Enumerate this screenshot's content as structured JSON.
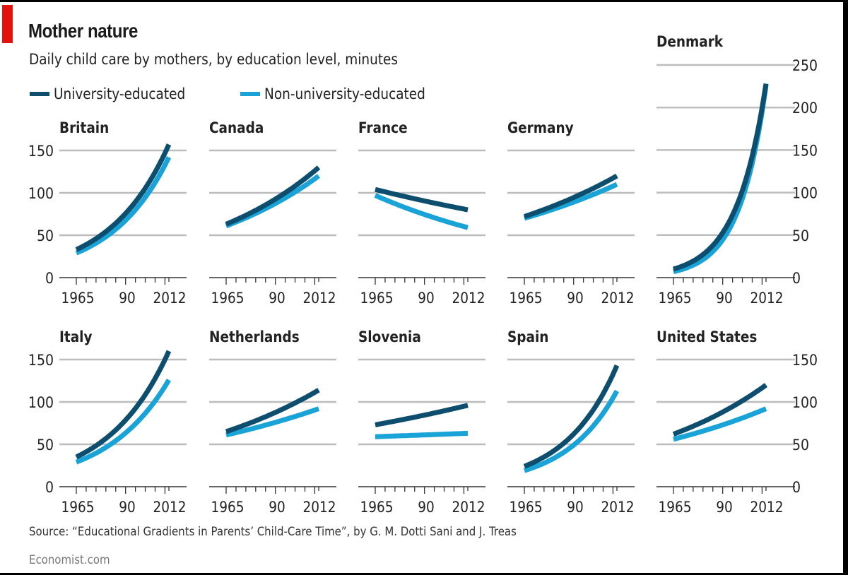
{
  "header": {
    "title": "Mother nature",
    "subtitle": "Daily child care by mothers, by education level, minutes"
  },
  "legend": [
    {
      "label": "University-educated",
      "color": "#0d4e6e"
    },
    {
      "label": "Non-university-educated",
      "color": "#1aa3d6"
    }
  ],
  "footer": {
    "source": "Source: “Educational Gradients in Parents’ Child-Care Time”, by G. M. Dotti Sani and J. Treas",
    "credit": "Economist.com"
  },
  "colors": {
    "accent_red": "#e3120b",
    "grid": "#bdbdbd",
    "axis": "#333333"
  },
  "chart_data": {
    "type": "line",
    "title": "Mother nature",
    "subtitle": "Daily child care by mothers, by education level, minutes",
    "xlabel": "",
    "ylabel": "minutes",
    "x_ticks": [
      "1965",
      "90",
      "2012"
    ],
    "x_range": [
      1965,
      2012
    ],
    "grid": true,
    "legend_position": "top-left",
    "series_names": [
      "University-educated",
      "Non-university-educated"
    ],
    "panels": [
      {
        "country": "Britain",
        "row": 0,
        "ylim": [
          0,
          150
        ],
        "y_ticks": [
          "0",
          "50",
          "100",
          "150"
        ],
        "y_axis_side": "left",
        "series": [
          {
            "name": "University-educated",
            "x": [
              1965,
              2012
            ],
            "values": [
              33,
              157
            ]
          },
          {
            "name": "Non-university-educated",
            "x": [
              1965,
              2012
            ],
            "values": [
              29,
              142
            ]
          }
        ]
      },
      {
        "country": "Canada",
        "row": 0,
        "ylim": [
          0,
          150
        ],
        "y_ticks": [],
        "y_axis_side": "none",
        "series": [
          {
            "name": "University-educated",
            "x": [
              1965,
              2012
            ],
            "values": [
              63,
              130
            ]
          },
          {
            "name": "Non-university-educated",
            "x": [
              1965,
              2012
            ],
            "values": [
              61,
              120
            ]
          }
        ]
      },
      {
        "country": "France",
        "row": 0,
        "ylim": [
          0,
          150
        ],
        "y_ticks": [],
        "y_axis_side": "none",
        "series": [
          {
            "name": "University-educated",
            "x": [
              1965,
              2012
            ],
            "values": [
              104,
              80
            ]
          },
          {
            "name": "Non-university-educated",
            "x": [
              1965,
              2012
            ],
            "values": [
              97,
              59
            ]
          }
        ]
      },
      {
        "country": "Germany",
        "row": 0,
        "ylim": [
          0,
          150
        ],
        "y_ticks": [],
        "y_axis_side": "none",
        "series": [
          {
            "name": "University-educated",
            "x": [
              1965,
              2012
            ],
            "values": [
              72,
              120
            ]
          },
          {
            "name": "Non-university-educated",
            "x": [
              1965,
              2012
            ],
            "values": [
              70,
              110
            ]
          }
        ]
      },
      {
        "country": "Denmark",
        "row": 0,
        "ylim": [
          0,
          250
        ],
        "y_ticks": [
          "0",
          "50",
          "100",
          "150",
          "200",
          "250"
        ],
        "y_axis_side": "right",
        "series": [
          {
            "name": "University-educated",
            "x": [
              1965,
              2012
            ],
            "values": [
              10,
              228
            ]
          },
          {
            "name": "Non-university-educated",
            "x": [
              1965,
              2012
            ],
            "values": [
              7,
              226
            ]
          }
        ]
      },
      {
        "country": "Italy",
        "row": 1,
        "ylim": [
          0,
          150
        ],
        "y_ticks": [
          "0",
          "50",
          "100",
          "150"
        ],
        "y_axis_side": "left",
        "series": [
          {
            "name": "University-educated",
            "x": [
              1965,
              2012
            ],
            "values": [
              35,
              160
            ]
          },
          {
            "name": "Non-university-educated",
            "x": [
              1965,
              2012
            ],
            "values": [
              29,
              126
            ]
          }
        ]
      },
      {
        "country": "Netherlands",
        "row": 1,
        "ylim": [
          0,
          150
        ],
        "y_ticks": [],
        "y_axis_side": "none",
        "series": [
          {
            "name": "University-educated",
            "x": [
              1965,
              2012
            ],
            "values": [
              65,
              114
            ]
          },
          {
            "name": "Non-university-educated",
            "x": [
              1965,
              2012
            ],
            "values": [
              61,
              92
            ]
          }
        ]
      },
      {
        "country": "Slovenia",
        "row": 1,
        "ylim": [
          0,
          150
        ],
        "y_ticks": [],
        "y_axis_side": "none",
        "series": [
          {
            "name": "University-educated",
            "x": [
              1965,
              2012
            ],
            "values": [
              73,
              96
            ]
          },
          {
            "name": "Non-university-educated",
            "x": [
              1965,
              2012
            ],
            "values": [
              59,
              63
            ]
          }
        ]
      },
      {
        "country": "Spain",
        "row": 1,
        "ylim": [
          0,
          150
        ],
        "y_ticks": [],
        "y_axis_side": "none",
        "series": [
          {
            "name": "University-educated",
            "x": [
              1965,
              2012
            ],
            "values": [
              24,
              143
            ]
          },
          {
            "name": "Non-university-educated",
            "x": [
              1965,
              2012
            ],
            "values": [
              19,
              113
            ]
          }
        ]
      },
      {
        "country": "United States",
        "row": 1,
        "ylim": [
          0,
          150
        ],
        "y_ticks": [
          "0",
          "50",
          "100",
          "150"
        ],
        "y_axis_side": "right",
        "series": [
          {
            "name": "University-educated",
            "x": [
              1965,
              2012
            ],
            "values": [
              62,
              120
            ]
          },
          {
            "name": "Non-university-educated",
            "x": [
              1965,
              2012
            ],
            "values": [
              56,
              92
            ]
          }
        ]
      }
    ]
  }
}
